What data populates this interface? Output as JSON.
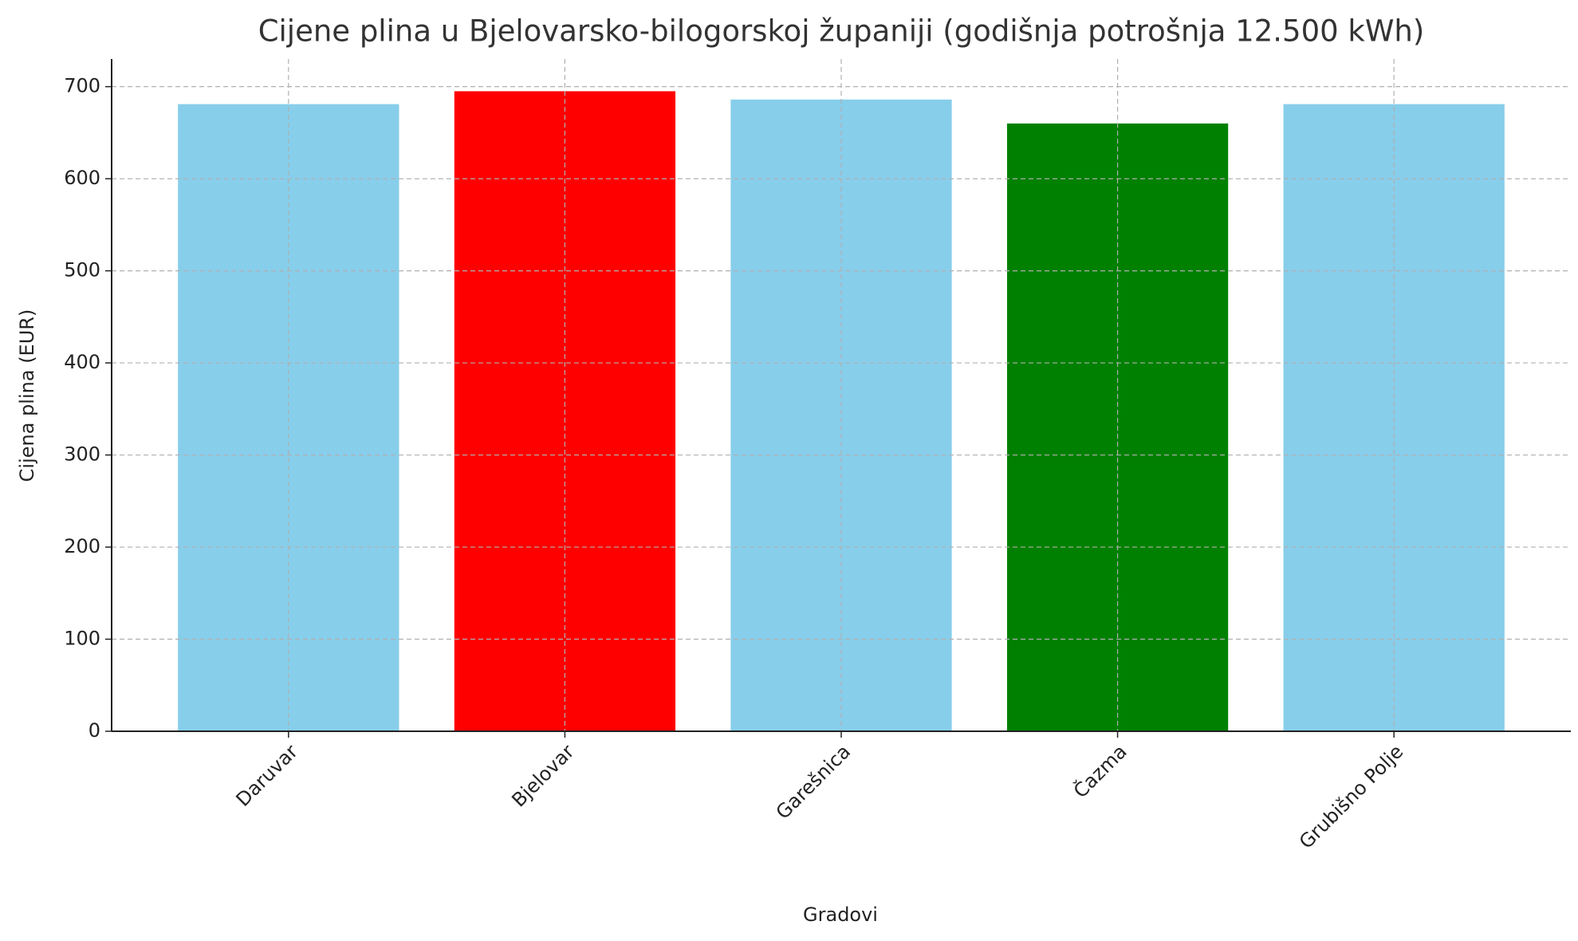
{
  "chart_data": {
    "type": "bar",
    "title": "Cijene plina u Bjelovarsko-bilogorskoj županiji (godišnja potrošnja 12.500 kWh)",
    "xlabel": "Gradovi",
    "ylabel": "Cijena plina (EUR)",
    "categories": [
      "Daruvar",
      "Bjelovar",
      "Garešnica",
      "Čazma",
      "Grubišno Polje"
    ],
    "values": [
      681,
      695,
      686,
      660,
      681
    ],
    "colors": [
      "#87ceeb",
      "#ff0000",
      "#87ceeb",
      "#008000",
      "#87ceeb"
    ],
    "ylim": [
      0,
      730
    ],
    "yticks": [
      0,
      100,
      200,
      300,
      400,
      500,
      600,
      700
    ],
    "grid": true
  }
}
